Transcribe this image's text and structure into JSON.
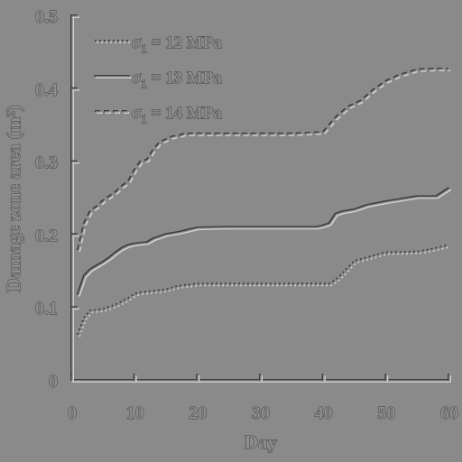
{
  "chart_data": {
    "type": "line",
    "title": "",
    "xlabel": "Day",
    "ylabel": "Damage zone area (m²)",
    "xlim": [
      0,
      60
    ],
    "ylim": [
      0,
      0.5
    ],
    "xticks": [
      "0",
      "10",
      "20",
      "30",
      "40",
      "50",
      "60"
    ],
    "yticks": [
      "0",
      "0.1",
      "0.2",
      "0.3",
      "0.4",
      "0.5"
    ],
    "grid": false,
    "legend_position": "top-left",
    "series": [
      {
        "name_symbol": "σ",
        "name_subscript": "1",
        "name_rest": " = 12 MPa",
        "style": "dotted",
        "x": [
          1,
          2,
          3,
          5,
          7,
          9,
          10,
          11,
          12,
          13,
          15,
          17,
          19,
          20,
          25,
          30,
          35,
          40,
          41,
          42,
          43,
          45,
          47,
          50,
          55,
          57,
          60
        ],
        "y": [
          0.062,
          0.085,
          0.095,
          0.097,
          0.103,
          0.112,
          0.118,
          0.12,
          0.121,
          0.122,
          0.124,
          0.129,
          0.131,
          0.132,
          0.132,
          0.132,
          0.132,
          0.132,
          0.132,
          0.137,
          0.145,
          0.163,
          0.168,
          0.175,
          0.176,
          0.179,
          0.185
        ]
      },
      {
        "name_symbol": "σ",
        "name_subscript": "1",
        "name_rest": " = 13 MPa",
        "style": "solid",
        "x": [
          1,
          2,
          3,
          4,
          5,
          6,
          7,
          8,
          9,
          10,
          11,
          12,
          13,
          14,
          15,
          17,
          18,
          20,
          25,
          30,
          35,
          39,
          40,
          41,
          42,
          43,
          45,
          47,
          50,
          55,
          58,
          60
        ],
        "y": [
          0.118,
          0.143,
          0.152,
          0.157,
          0.162,
          0.168,
          0.175,
          0.181,
          0.185,
          0.187,
          0.188,
          0.189,
          0.194,
          0.197,
          0.2,
          0.203,
          0.205,
          0.209,
          0.21,
          0.21,
          0.21,
          0.21,
          0.212,
          0.215,
          0.228,
          0.231,
          0.234,
          0.24,
          0.245,
          0.252,
          0.252,
          0.263
        ]
      },
      {
        "name_symbol": "σ",
        "name_subscript": "1",
        "name_rest": " = 14 MPa",
        "style": "dashed",
        "x": [
          1,
          2,
          3,
          4,
          5,
          6,
          7,
          8,
          9,
          10,
          11,
          12,
          13,
          14,
          15,
          16,
          17,
          18,
          20,
          25,
          30,
          35,
          40,
          42,
          44,
          46,
          48,
          50,
          52,
          55,
          58,
          60
        ],
        "y": [
          0.178,
          0.215,
          0.232,
          0.238,
          0.246,
          0.252,
          0.258,
          0.266,
          0.272,
          0.288,
          0.3,
          0.302,
          0.316,
          0.326,
          0.33,
          0.334,
          0.335,
          0.338,
          0.338,
          0.338,
          0.338,
          0.338,
          0.34,
          0.36,
          0.375,
          0.383,
          0.398,
          0.41,
          0.418,
          0.426,
          0.427,
          0.427
        ]
      }
    ]
  }
}
